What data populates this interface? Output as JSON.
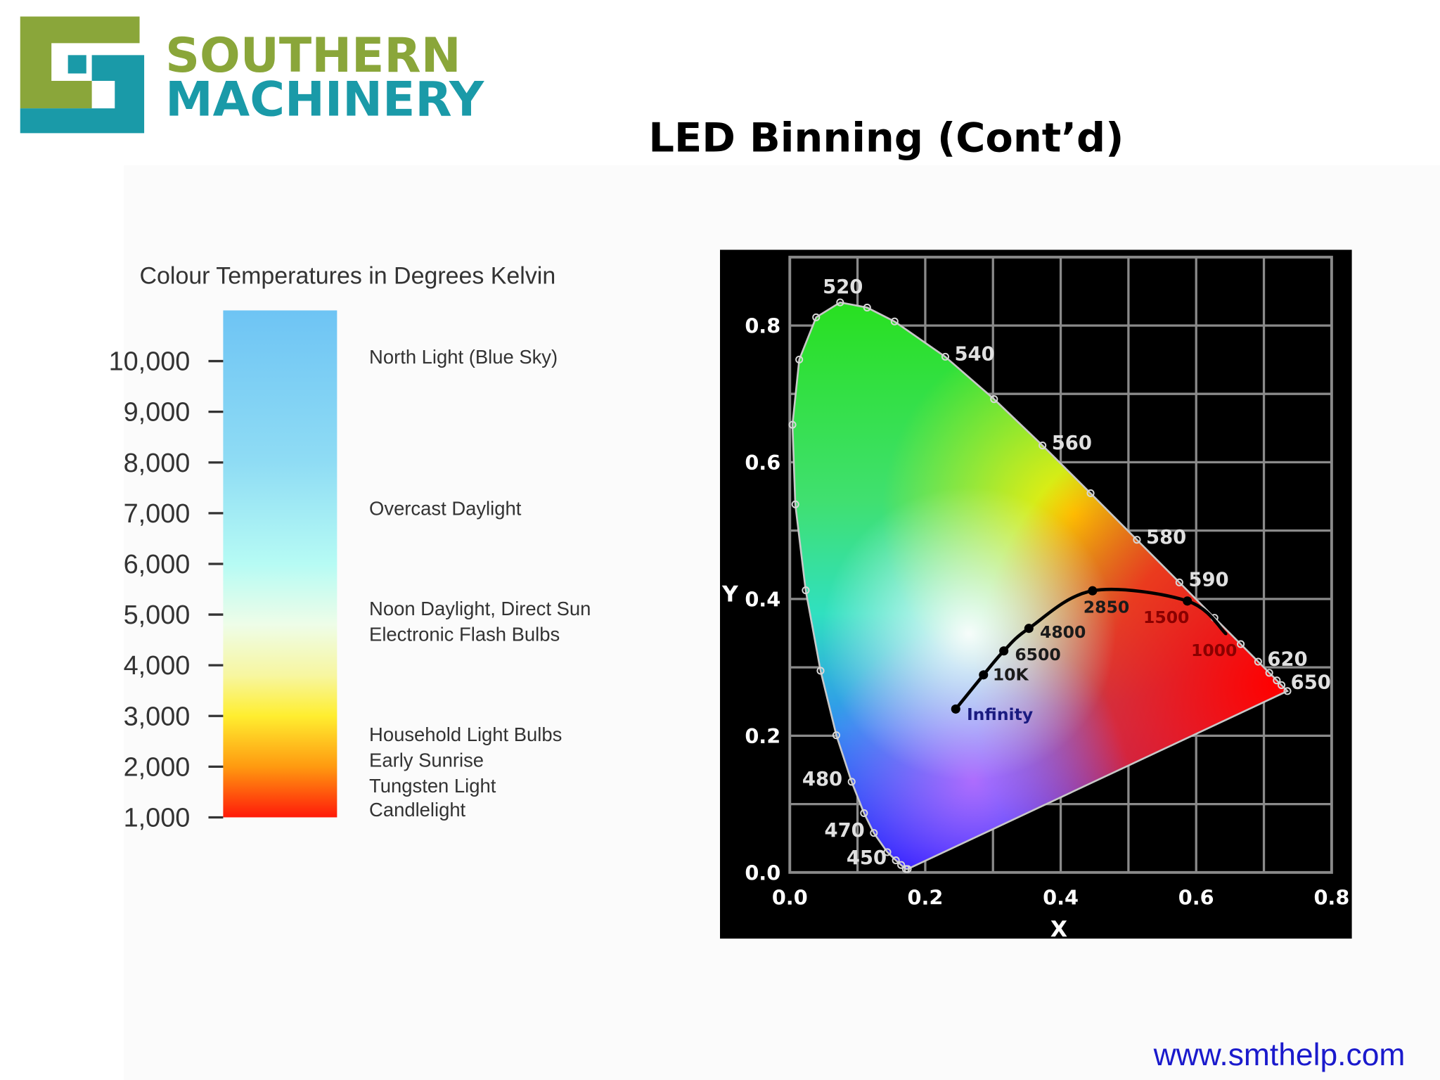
{
  "header": {
    "logo_line1": "SOUTHERN",
    "logo_line2": "MACHINERY",
    "title": "LED Binning (Cont’d)"
  },
  "footer": {
    "url": "www.smthelp.com"
  },
  "chart_data": [
    {
      "type": "colorbar",
      "title": "Colour Temperatures in Degrees Kelvin",
      "ylim": [
        1000,
        11000
      ],
      "yticks": [
        {
          "value": 1000,
          "label": "1,000"
        },
        {
          "value": 2000,
          "label": "2,000"
        },
        {
          "value": 3000,
          "label": "3,000"
        },
        {
          "value": 4000,
          "label": "4,000"
        },
        {
          "value": 5000,
          "label": "5,000"
        },
        {
          "value": 6000,
          "label": "6,000"
        },
        {
          "value": 7000,
          "label": "7,000"
        },
        {
          "value": 8000,
          "label": "8,000"
        },
        {
          "value": 9000,
          "label": "9,000"
        },
        {
          "value": 10000,
          "label": "10,000"
        }
      ],
      "annotations": [
        "North Light (Blue Sky)",
        "Overcast Daylight",
        "Noon Daylight, Direct Sun",
        "Electronic Flash Bulbs",
        "Household Light Bulbs",
        "Early Sunrise",
        "Tungsten Light",
        "Candlelight"
      ]
    },
    {
      "type": "chromaticity",
      "xlabel": "X",
      "ylabel": "Y",
      "xlim": [
        0,
        0.8
      ],
      "ylim": [
        0,
        0.9
      ],
      "xticks": [
        {
          "value": 0,
          "label": "0.0"
        },
        0.2,
        0.4,
        0.6,
        0.8
      ],
      "yticks": [
        {
          "value": 0,
          "label": "0.0"
        },
        0.2,
        0.4,
        0.6,
        0.8
      ],
      "xminorticks": [
        0.1,
        0.3,
        0.5,
        0.7
      ],
      "yminorticks": [
        0.1,
        0.3,
        0.5,
        0.7
      ],
      "grid": true,
      "spectral_locus": {
        "x": [
          0.1741,
          0.1714,
          0.1644,
          0.1566,
          0.144,
          0.1241,
          0.1096,
          0.0913,
          0.0687,
          0.0454,
          0.0235,
          0.0082,
          0.0039,
          0.0139,
          0.0389,
          0.0743,
          0.1142,
          0.1547,
          0.2296,
          0.3016,
          0.3731,
          0.4441,
          0.5125,
          0.5752,
          0.627,
          0.6658,
          0.6915,
          0.7079,
          0.719,
          0.726,
          0.7347
        ],
        "y": [
          0.005,
          0.0051,
          0.0109,
          0.0177,
          0.0297,
          0.0578,
          0.0868,
          0.1327,
          0.2007,
          0.295,
          0.4127,
          0.5384,
          0.6548,
          0.7502,
          0.812,
          0.8338,
          0.8262,
          0.8059,
          0.7543,
          0.6923,
          0.6245,
          0.5547,
          0.4866,
          0.4242,
          0.3725,
          0.334,
          0.3083,
          0.292,
          0.2809,
          0.274,
          0.2653
        ],
        "labels": [
          null,
          null,
          null,
          "450",
          null,
          "470",
          null,
          "480",
          null,
          null,
          null,
          null,
          null,
          null,
          null,
          "520",
          null,
          null,
          "540",
          null,
          "560",
          null,
          "580",
          "590",
          null,
          null,
          "620",
          null,
          null,
          "650",
          null
        ]
      },
      "planckian_locus": {
        "x": [
          0.245,
          0.286,
          0.316,
          0.353,
          0.447,
          0.587,
          0.644
        ],
        "y": [
          0.239,
          0.289,
          0.324,
          0.357,
          0.412,
          0.397,
          0.349
        ],
        "labels": [
          "Infinity",
          "10K",
          "6500",
          "4800",
          "2850",
          "1500",
          "1000"
        ]
      }
    }
  ]
}
